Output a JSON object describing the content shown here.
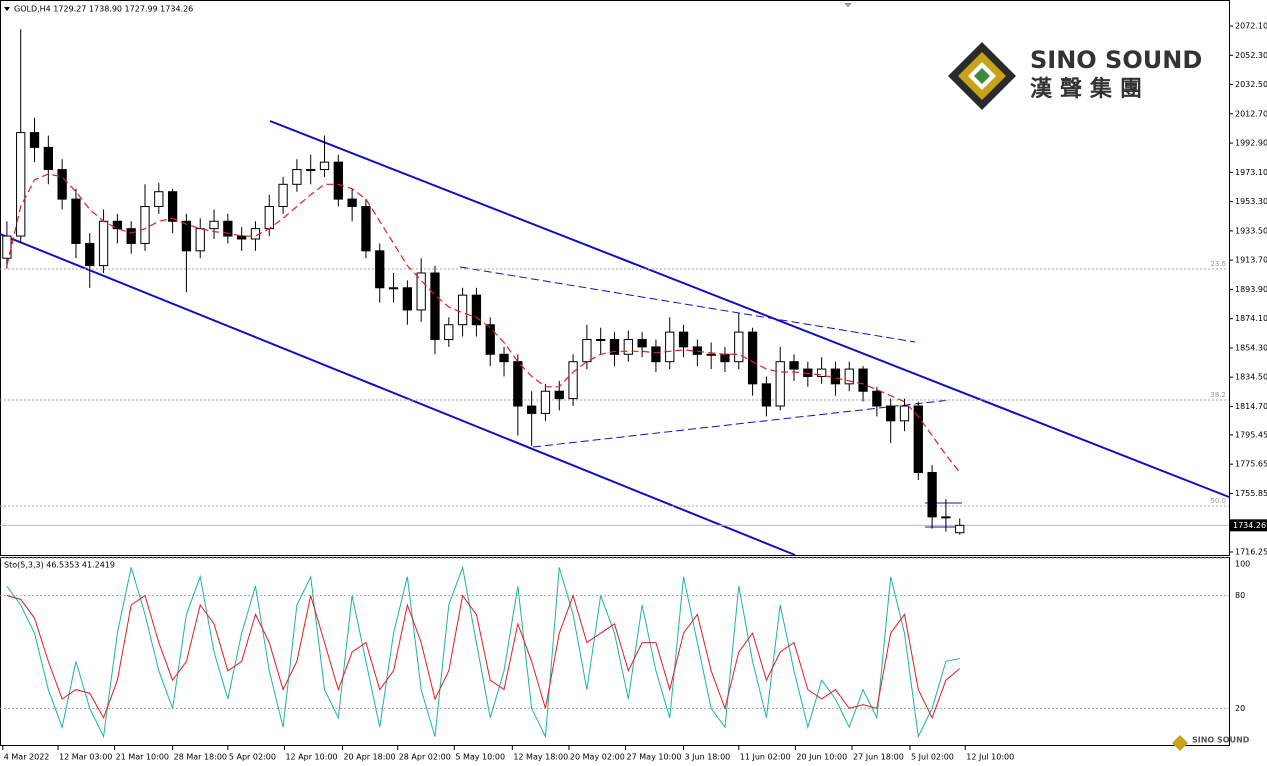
{
  "chart_data": [
    {
      "type": "candlestick",
      "header": "GOLD,H4  1729.27 1738.90 1727.99 1734.26",
      "logo": {
        "name": "SINO SOUND",
        "chinese": "漢聲集團"
      },
      "xlim": [
        0,
        89
      ],
      "xticks": [
        {
          "value": 0.2,
          "label": "4 Mar 2022"
        },
        {
          "value": 4.2,
          "label": "12 Mar 03:00"
        },
        {
          "value": 8.3,
          "label": "21 Mar 10:00"
        },
        {
          "value": 12.5,
          "label": "28 Mar 18:00"
        },
        {
          "value": 16.5,
          "label": "5 Apr 02:00"
        },
        {
          "value": 20.6,
          "label": "12 Apr 10:00"
        },
        {
          "value": 24.8,
          "label": "20 Apr 18:00"
        },
        {
          "value": 28.8,
          "label": "28 Apr 02:00"
        },
        {
          "value": 32.9,
          "label": "5 May 10:00"
        },
        {
          "value": 37.1,
          "label": "12 May 18:00"
        },
        {
          "value": 41.2,
          "label": "20 May 02:00"
        },
        {
          "value": 45.3,
          "label": "27 May 10:00"
        },
        {
          "value": 49.5,
          "label": "3 Jun 18:00"
        },
        {
          "value": 53.5,
          "label": "11 Jun 02:00"
        },
        {
          "value": 57.6,
          "label": "20 Jun 10:00"
        },
        {
          "value": 61.7,
          "label": "27 Jun 18:00"
        },
        {
          "value": 65.9,
          "label": "5 Jul 02:00"
        },
        {
          "value": 69.9,
          "label": "12 Jul 10:00"
        }
      ],
      "ylim": [
        1714.2,
        2087.0
      ],
      "yticks": [
        {
          "value": 2072.1,
          "label": "2072.10"
        },
        {
          "value": 2052.3,
          "label": "2052.30"
        },
        {
          "value": 2032.5,
          "label": "2032.50"
        },
        {
          "value": 2012.7,
          "label": "2012.70"
        },
        {
          "value": 1992.9,
          "label": "1992.90"
        },
        {
          "value": 1973.1,
          "label": "1973.10"
        },
        {
          "value": 1953.3,
          "label": "1953.30"
        },
        {
          "value": 1933.5,
          "label": "1933.50"
        },
        {
          "value": 1913.7,
          "label": "1913.70"
        },
        {
          "value": 1893.9,
          "label": "1893.90"
        },
        {
          "value": 1874.1,
          "label": "1874.10"
        },
        {
          "value": 1854.3,
          "label": "1854.30"
        },
        {
          "value": 1834.5,
          "label": "1834.50"
        },
        {
          "value": 1814.7,
          "label": "1814.70"
        },
        {
          "value": 1795.45,
          "label": "1795.45"
        },
        {
          "value": 1775.65,
          "label": "1775.65"
        },
        {
          "value": 1755.85,
          "label": "1755.85"
        },
        {
          "value": 1716.25,
          "label": "1716.25"
        }
      ],
      "current_price": 1734.26,
      "fib_levels": [
        {
          "label": "23.6",
          "price": 1907.7
        },
        {
          "label": "38.2",
          "price": 1819.1
        },
        {
          "label": "50.0",
          "price": 1747.3
        }
      ],
      "color": "#000000",
      "ma_color": "#e02020",
      "open": [
        1915,
        1930,
        2000,
        1990,
        1975,
        1955,
        1925,
        1910,
        1940,
        1935,
        1925,
        1950,
        1960,
        1940,
        1920,
        1935,
        1940,
        1930,
        1928,
        1935,
        1950,
        1965,
        1975,
        1975,
        1980,
        1955,
        1950,
        1920,
        1895,
        1895,
        1880,
        1905,
        1860,
        1870,
        1890,
        1870,
        1850,
        1845,
        1815,
        1810,
        1825,
        1820,
        1845,
        1860,
        1860,
        1850,
        1860,
        1855,
        1845,
        1865,
        1855,
        1850,
        1850,
        1845,
        1865,
        1830,
        1815,
        1845,
        1840,
        1835,
        1840,
        1830,
        1840,
        1825,
        1815,
        1805,
        1815,
        1770,
        1740,
        1729.27
      ],
      "high": [
        1940,
        2070,
        2010,
        1998,
        1982,
        1962,
        1932,
        1948,
        1945,
        1940,
        1965,
        1966,
        1962,
        1945,
        1942,
        1948,
        1945,
        1936,
        1940,
        1958,
        1970,
        1982,
        1985,
        1998,
        1985,
        1962,
        1955,
        1925,
        1905,
        1900,
        1915,
        1910,
        1875,
        1895,
        1895,
        1875,
        1855,
        1850,
        1825,
        1830,
        1832,
        1850,
        1870,
        1868,
        1865,
        1866,
        1865,
        1860,
        1875,
        1870,
        1860,
        1858,
        1855,
        1878,
        1868,
        1835,
        1855,
        1850,
        1845,
        1848,
        1845,
        1845,
        1842,
        1828,
        1820,
        1820,
        1818,
        1775,
        1752,
        1738.9
      ],
      "low": [
        1908,
        1925,
        1980,
        1965,
        1948,
        1915,
        1895,
        1905,
        1925,
        1918,
        1920,
        1945,
        1932,
        1892,
        1915,
        1928,
        1925,
        1920,
        1920,
        1930,
        1945,
        1960,
        1965,
        1970,
        1950,
        1940,
        1915,
        1885,
        1885,
        1870,
        1872,
        1850,
        1855,
        1862,
        1862,
        1842,
        1835,
        1795,
        1788,
        1805,
        1812,
        1815,
        1840,
        1850,
        1842,
        1845,
        1848,
        1838,
        1840,
        1848,
        1842,
        1840,
        1838,
        1840,
        1822,
        1808,
        1812,
        1832,
        1828,
        1830,
        1822,
        1825,
        1818,
        1808,
        1790,
        1798,
        1765,
        1732,
        1730,
        1727.99
      ],
      "close": [
        1930,
        2000,
        1990,
        1975,
        1955,
        1925,
        1910,
        1940,
        1935,
        1925,
        1950,
        1960,
        1940,
        1920,
        1935,
        1940,
        1930,
        1928,
        1935,
        1950,
        1965,
        1975,
        1975,
        1980,
        1955,
        1950,
        1920,
        1895,
        1895,
        1880,
        1905,
        1860,
        1870,
        1890,
        1870,
        1850,
        1845,
        1815,
        1810,
        1825,
        1820,
        1845,
        1860,
        1860,
        1850,
        1860,
        1855,
        1845,
        1865,
        1855,
        1850,
        1850,
        1845,
        1865,
        1830,
        1815,
        1845,
        1840,
        1835,
        1840,
        1830,
        1840,
        1825,
        1815,
        1805,
        1815,
        1770,
        1740,
        1740,
        1734.26
      ],
      "ma": [
        1910,
        1950,
        1968,
        1972,
        1970,
        1960,
        1948,
        1940,
        1935,
        1932,
        1935,
        1940,
        1942,
        1938,
        1935,
        1933,
        1932,
        1930,
        1930,
        1935,
        1942,
        1950,
        1958,
        1965,
        1965,
        1962,
        1955,
        1940,
        1925,
        1910,
        1900,
        1890,
        1882,
        1878,
        1875,
        1868,
        1858,
        1845,
        1835,
        1828,
        1828,
        1838,
        1845,
        1850,
        1852,
        1852,
        1852,
        1851,
        1852,
        1853,
        1852,
        1851,
        1850,
        1850,
        1845,
        1840,
        1838,
        1838,
        1837,
        1836,
        1834,
        1832,
        1830,
        1826,
        1822,
        1818,
        1808,
        1795,
        1782,
        1770
      ]
    },
    {
      "type": "line",
      "title": "Sto(5,3,3) 46.5353 41.2419",
      "ylim": [
        0,
        100
      ],
      "yticks": [
        100,
        80,
        20
      ],
      "series": [
        {
          "color": "#20b2aa",
          "values": [
            85,
            75,
            60,
            30,
            10,
            45,
            20,
            5,
            60,
            95,
            70,
            40,
            20,
            70,
            90,
            50,
            25,
            60,
            85,
            40,
            10,
            75,
            90,
            30,
            15,
            80,
            45,
            10,
            60,
            90,
            30,
            5,
            75,
            95,
            55,
            15,
            40,
            85,
            20,
            5,
            95,
            70,
            30,
            80,
            60,
            25,
            75,
            40,
            15,
            90,
            55,
            20,
            10,
            85,
            45,
            15,
            75,
            40,
            10,
            35,
            25,
            10,
            30,
            15,
            90,
            60,
            5,
            20,
            45,
            46.5353
          ]
        },
        {
          "color": "#e02020",
          "values": [
            80,
            78,
            68,
            45,
            25,
            30,
            28,
            15,
            35,
            75,
            80,
            55,
            35,
            45,
            75,
            65,
            40,
            45,
            70,
            55,
            30,
            45,
            80,
            55,
            30,
            50,
            55,
            30,
            40,
            75,
            55,
            25,
            40,
            80,
            70,
            35,
            30,
            65,
            45,
            20,
            60,
            80,
            55,
            60,
            65,
            40,
            55,
            55,
            30,
            60,
            70,
            40,
            20,
            50,
            60,
            35,
            50,
            55,
            30,
            25,
            30,
            20,
            22,
            20,
            60,
            70,
            30,
            15,
            35,
            41.2419
          ]
        }
      ]
    }
  ]
}
